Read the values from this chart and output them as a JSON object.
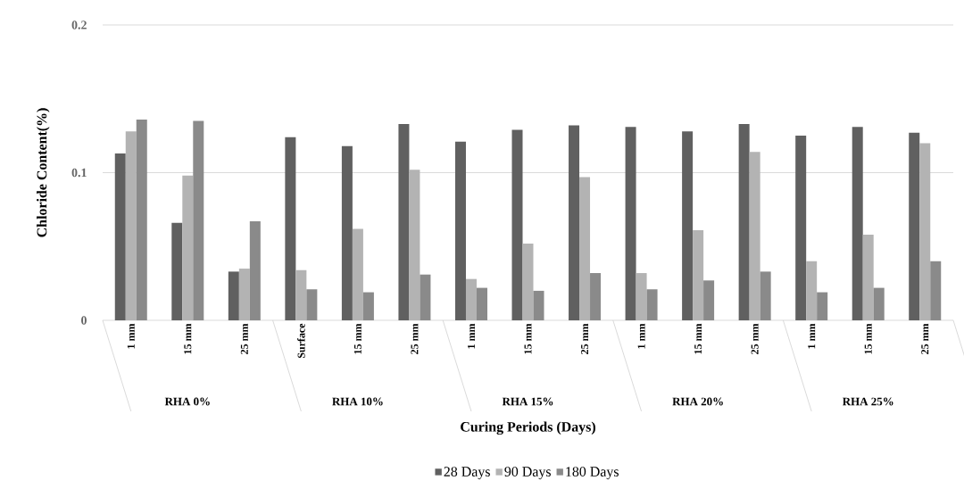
{
  "chart_data": {
    "type": "bar",
    "xlabel": "Curing Periods (Days)",
    "ylabel": "Chloride Content(%)",
    "categories": [
      "1 mm",
      "15 mm",
      "25 mm",
      "Surface",
      "15 mm",
      "25 mm",
      "1 mm",
      "15 mm",
      "25 mm",
      "1 mm",
      "15 mm",
      "25 mm",
      "1 mm",
      "15 mm",
      "25 mm"
    ],
    "annotations": [
      "RHA 0%",
      "RHA 10%",
      "RHA 15%",
      "RHA 20%",
      "RHA 25%"
    ],
    "series": [
      {
        "name": "28 Days",
        "color": "#606060",
        "values": [
          0.113,
          0.066,
          0.033,
          0.124,
          0.118,
          0.133,
          0.121,
          0.129,
          0.132,
          0.131,
          0.128,
          0.133,
          0.125,
          0.131,
          0.127
        ]
      },
      {
        "name": "90 Days",
        "color": "#b3b3b3",
        "values": [
          0.128,
          0.098,
          0.035,
          0.034,
          0.062,
          0.102,
          0.028,
          0.052,
          0.097,
          0.032,
          0.061,
          0.114,
          0.04,
          0.058,
          0.12
        ]
      },
      {
        "name": "180 Days",
        "color": "#8a8a8a",
        "values": [
          0.136,
          0.135,
          0.067,
          0.021,
          0.019,
          0.031,
          0.022,
          0.02,
          0.032,
          0.021,
          0.027,
          0.033,
          0.019,
          0.022,
          0.04
        ]
      }
    ],
    "ylim": [
      0,
      0.2
    ],
    "yticks": [
      0,
      0.1,
      0.2
    ],
    "grid": "y",
    "legend": "bottom"
  }
}
